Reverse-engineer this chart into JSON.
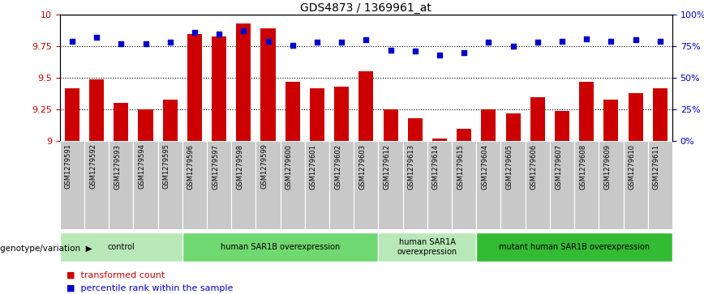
{
  "title": "GDS4873 / 1369961_at",
  "samples": [
    "GSM1279591",
    "GSM1279592",
    "GSM1279593",
    "GSM1279594",
    "GSM1279595",
    "GSM1279596",
    "GSM1279597",
    "GSM1279598",
    "GSM1279599",
    "GSM1279600",
    "GSM1279601",
    "GSM1279602",
    "GSM1279603",
    "GSM1279612",
    "GSM1279613",
    "GSM1279614",
    "GSM1279615",
    "GSM1279604",
    "GSM1279605",
    "GSM1279606",
    "GSM1279607",
    "GSM1279608",
    "GSM1279609",
    "GSM1279610",
    "GSM1279611"
  ],
  "red_values": [
    9.42,
    9.49,
    9.3,
    9.25,
    9.33,
    9.85,
    9.83,
    9.93,
    9.89,
    9.47,
    9.42,
    9.43,
    9.55,
    9.25,
    9.18,
    9.02,
    9.1,
    9.25,
    9.22,
    9.35,
    9.24,
    9.47,
    9.33,
    9.38,
    9.42
  ],
  "blue_values": [
    79,
    82,
    77,
    77,
    78,
    86,
    85,
    87,
    79,
    76,
    78,
    78,
    80,
    72,
    71,
    68,
    70,
    78,
    75,
    78,
    79,
    81,
    79,
    80,
    79
  ],
  "groups": [
    {
      "label": "control",
      "start": 0,
      "end": 5,
      "color": "#b8e8b8"
    },
    {
      "label": "human SAR1B overexpression",
      "start": 5,
      "end": 13,
      "color": "#70d870"
    },
    {
      "label": "human SAR1A\noverexpression",
      "start": 13,
      "end": 17,
      "color": "#b8e8b8"
    },
    {
      "label": "mutant human SAR1B overexpression",
      "start": 17,
      "end": 25,
      "color": "#33bb33"
    }
  ],
  "ylim_left": [
    9.0,
    10.0
  ],
  "ylim_right": [
    0,
    100
  ],
  "yticks_left": [
    9.0,
    9.25,
    9.5,
    9.75,
    10.0
  ],
  "ytick_labels_left": [
    "9",
    "9.25",
    "9.5",
    "9.75",
    "10"
  ],
  "yticks_right": [
    0,
    25,
    50,
    75,
    100
  ],
  "ytick_labels_right": [
    "0%",
    "25%",
    "50%",
    "75%",
    "100%"
  ],
  "red_color": "#cc0000",
  "blue_color": "#0000cc",
  "bar_width": 0.6,
  "dot_size": 18,
  "genotype_label": "genotype/variation",
  "legend_red": "transformed count",
  "legend_blue": "percentile rank within the sample",
  "cell_bg_color": "#c8c8c8",
  "cell_border_color": "white"
}
